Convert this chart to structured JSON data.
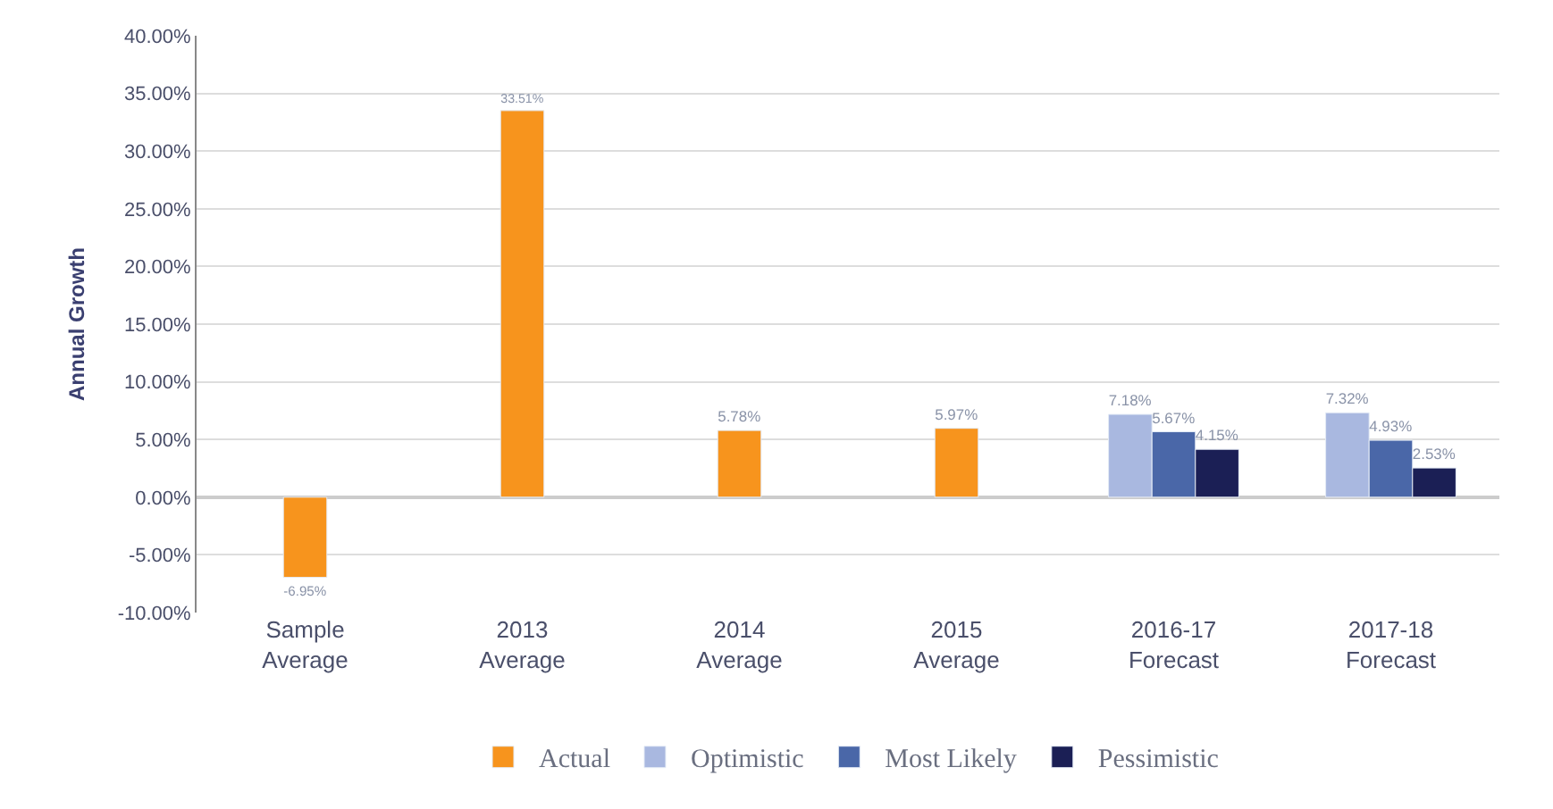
{
  "chart_data": {
    "type": "bar",
    "ylabel": "Annual Growth",
    "categories": [
      "Sample Average",
      "2013 Average",
      "2014 Average",
      "2015 Average",
      "2016-17 Forecast",
      "2017-18 Forecast"
    ],
    "series": [
      {
        "name": "Actual",
        "color": "#f7941d",
        "values": [
          -6.95,
          33.51,
          5.78,
          5.97,
          null,
          null
        ],
        "value_labels": [
          "-6.95%",
          "33.51%",
          "5.78%",
          "5.97%",
          null,
          null
        ]
      },
      {
        "name": "Optimistic",
        "color": "#a9b8e0",
        "values": [
          null,
          null,
          null,
          null,
          7.18,
          7.32
        ],
        "value_labels": [
          null,
          null,
          null,
          null,
          "7.18%",
          "7.32%"
        ]
      },
      {
        "name": "Most Likely",
        "color": "#4a67a8",
        "values": [
          null,
          null,
          null,
          null,
          5.67,
          4.93
        ],
        "value_labels": [
          null,
          null,
          null,
          null,
          "5.67%",
          "4.93%"
        ]
      },
      {
        "name": "Pessimistic",
        "color": "#1b1f55",
        "values": [
          null,
          null,
          null,
          null,
          4.15,
          2.53
        ],
        "value_labels": [
          null,
          null,
          null,
          null,
          "4.15%",
          "2.53%"
        ]
      }
    ],
    "ylim": [
      -10,
      40
    ],
    "yticks": [
      {
        "value": -10,
        "label": "-10.00%"
      },
      {
        "value": -5,
        "label": "-5.00%"
      },
      {
        "value": 0,
        "label": "0.00%"
      },
      {
        "value": 5,
        "label": "5.00%"
      },
      {
        "value": 10,
        "label": "10.00%"
      },
      {
        "value": 15,
        "label": "15.00%"
      },
      {
        "value": 20,
        "label": "20.00%"
      },
      {
        "value": 25,
        "label": "25.00%"
      },
      {
        "value": 30,
        "label": "30.00%"
      },
      {
        "value": 35,
        "label": "35.00%"
      },
      {
        "value": 40,
        "label": "40.00%"
      }
    ],
    "grid": "y",
    "legend": "bottom"
  }
}
